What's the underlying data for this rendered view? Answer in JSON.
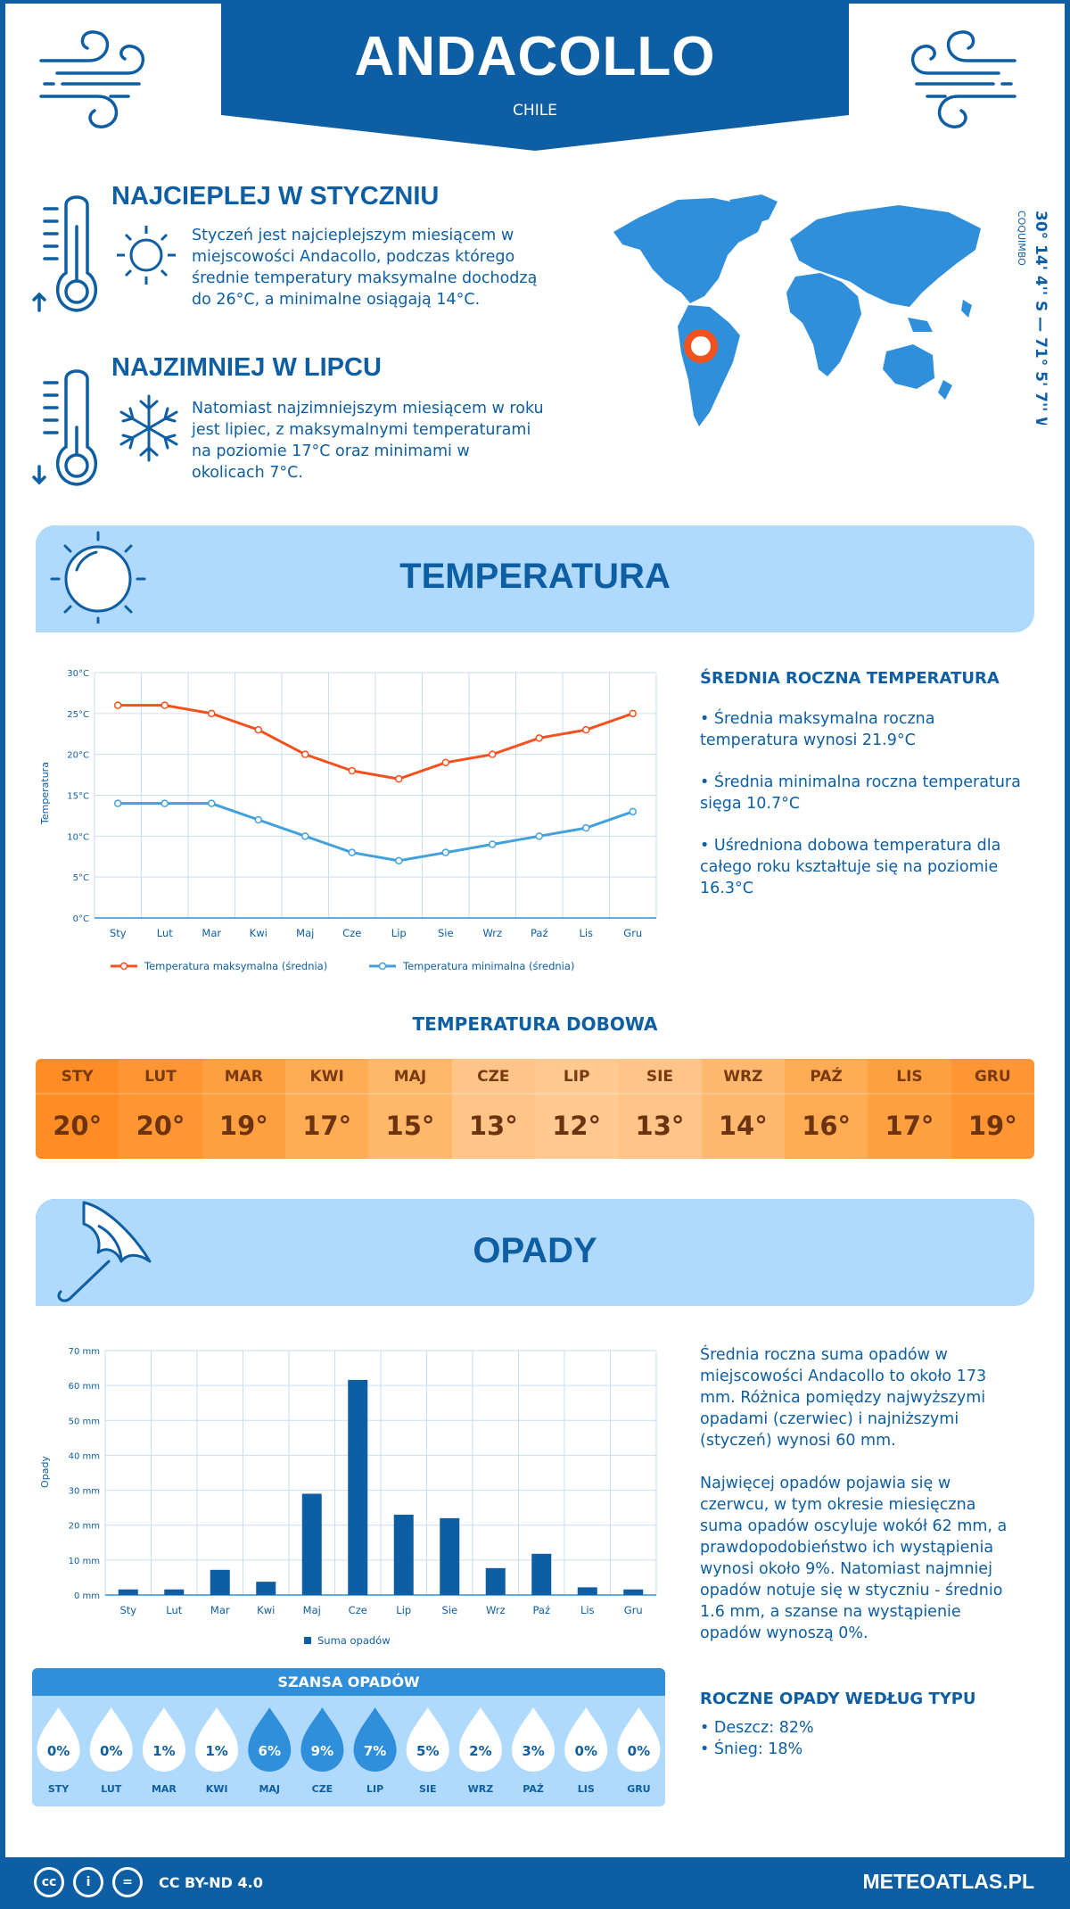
{
  "header": {
    "city": "ANDACOLLO",
    "country": "CHILE"
  },
  "warmest": {
    "title": "NAJCIEPLEJ W STYCZNIU",
    "lines": [
      "Styczeń jest najcieplejszym miesiącem w",
      "miejscowości Andacollo, podczas którego",
      "średnie temperatury maksymalne dochodzą",
      "do 26°C, a minimalne osiągają 14°C."
    ]
  },
  "coldest": {
    "title": "NAJZIMNIEJ W LIPCU",
    "lines": [
      "Natomiast najzimniejszym miesiącem w roku",
      "jest lipiec, z maksymalnymi temperaturami",
      "na poziomie 17°C oraz minimami w",
      "okolicach 7°C."
    ]
  },
  "location": {
    "coords": "30° 14' 4'' S — 71° 5' 7'' W",
    "region": "COQUIMBO"
  },
  "temperature_section": {
    "title": "TEMPERATURA",
    "info_title": "ŚREDNIA ROCZNA TEMPERATURA",
    "info": [
      [
        "• Średnia maksymalna roczna",
        "temperatura wynosi 21.9°C"
      ],
      [
        "• Średnia minimalna roczna temperatura",
        "sięga 10.7°C"
      ],
      [
        "• Uśredniona dobowa temperatura dla",
        "całego roku kształtuje się na poziomie",
        "16.3°C"
      ]
    ]
  },
  "daily_section": {
    "title": "TEMPERATURA DOBOWA",
    "months": [
      "STY",
      "LUT",
      "MAR",
      "KWI",
      "MAJ",
      "CZE",
      "LIP",
      "SIE",
      "WRZ",
      "PAŹ",
      "LIS",
      "GRU"
    ],
    "values": [
      "20°",
      "20°",
      "19°",
      "17°",
      "15°",
      "13°",
      "12°",
      "13°",
      "14°",
      "16°",
      "17°",
      "19°"
    ],
    "colors": [
      "#ff8c24",
      "#ff9633",
      "#ffa040",
      "#ffac55",
      "#ffb86a",
      "#ffc488",
      "#ffca92",
      "#ffc488",
      "#ffb870",
      "#ffac55",
      "#ffa040",
      "#ff9633"
    ]
  },
  "precip_section": {
    "title": "OPADY",
    "info1": [
      "Średnia roczna suma opadów w",
      "miejscowości Andacollo to około 173",
      "mm. Różnica pomiędzy najwyższymi",
      "opadami (czerwiec) i najniższymi",
      "(styczeń) wynosi 60 mm."
    ],
    "info2": [
      "Najwięcej opadów pojawia się w",
      "czerwcu, w tym okresie miesięczna",
      "suma opadów oscyluje wokół 62 mm, a",
      "prawdopodobieństwo ich wystąpienia",
      "wynosi około 9%. Natomiast najmniej",
      "opadów notuje się w styczniu - średnio",
      "1.6 mm, a szanse na wystąpienie",
      "opadów wynoszą 0%."
    ],
    "type_title": "ROCZNE OPADY WEDŁUG TYPU",
    "types": [
      "• Deszcz: 82%",
      "• Śnieg: 18%"
    ]
  },
  "chance": {
    "title": "SZANSA OPADÓW",
    "months": [
      "STY",
      "LUT",
      "MAR",
      "KWI",
      "MAJ",
      "CZE",
      "LIP",
      "SIE",
      "WRZ",
      "PAŹ",
      "LIS",
      "GRU"
    ],
    "values": [
      "0%",
      "0%",
      "1%",
      "1%",
      "6%",
      "9%",
      "7%",
      "5%",
      "2%",
      "3%",
      "0%",
      "0%"
    ],
    "highlight": [
      false,
      false,
      false,
      false,
      true,
      true,
      true,
      false,
      false,
      false,
      false,
      false
    ]
  },
  "footer": {
    "license": "CC BY-ND 4.0",
    "site": "METEOATLAS.PL",
    "cc_labels": [
      "cc",
      "i",
      "="
    ]
  },
  "chart_data": [
    {
      "type": "line",
      "categories": [
        "Sty",
        "Lut",
        "Mar",
        "Kwi",
        "Maj",
        "Cze",
        "Lip",
        "Sie",
        "Wrz",
        "Paź",
        "Lis",
        "Gru"
      ],
      "ylabel": "Temperatura",
      "ylim": [
        0,
        30
      ],
      "yticks": [
        "0°C",
        "5°C",
        "10°C",
        "15°C",
        "20°C",
        "25°C",
        "30°C"
      ],
      "series": [
        {
          "name": "Temperatura maksymalna (średnia)",
          "color": "#f4511e",
          "values": [
            26,
            26,
            25,
            23,
            20,
            18,
            17,
            19,
            20,
            22,
            23,
            25
          ]
        },
        {
          "name": "Temperatura minimalna (średnia)",
          "color": "#42a0dd",
          "values": [
            14,
            14,
            14,
            12,
            10,
            8,
            7,
            8,
            9,
            10,
            11,
            13
          ]
        }
      ],
      "grid": true,
      "legend": "bottom"
    },
    {
      "type": "bar",
      "categories": [
        "Sty",
        "Lut",
        "Mar",
        "Kwi",
        "Maj",
        "Cze",
        "Lip",
        "Sie",
        "Wrz",
        "Paź",
        "Lis",
        "Gru"
      ],
      "ylabel": "Opady",
      "ylim": [
        0,
        70
      ],
      "yticks": [
        "0 mm",
        "10 mm",
        "20 mm",
        "30 mm",
        "40 mm",
        "50 mm",
        "60 mm",
        "70 mm"
      ],
      "series": [
        {
          "name": "Suma opadów",
          "color": "#0e5ea3",
          "values": [
            1.6,
            1.6,
            7.2,
            3.8,
            29,
            61.6,
            23,
            22,
            7.7,
            11.8,
            2.2,
            1.6
          ]
        }
      ],
      "grid": true,
      "legend": "bottom"
    }
  ]
}
